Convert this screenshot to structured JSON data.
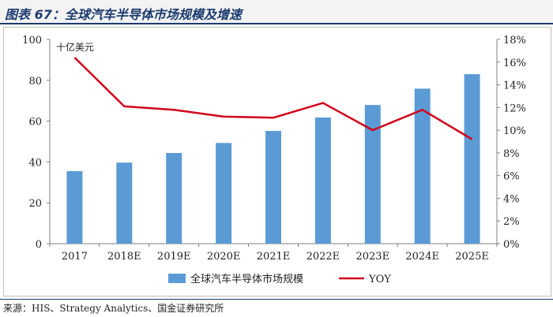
{
  "header": {
    "title": "图表 67：全球汽车半导体市场规模及增速"
  },
  "source": {
    "text": "来源：HIS、Strategy Analytics、国金证券研究所"
  },
  "chart_data": {
    "type": "bar",
    "title": "全球汽车半导体市场规模及增速",
    "unit_label": "十亿美元",
    "categories": [
      "2017",
      "2018E",
      "2019E",
      "2020E",
      "2021E",
      "2022E",
      "2023E",
      "2024E",
      "2025E"
    ],
    "series": [
      {
        "name": "全球汽车半导体市场规模",
        "type": "bar",
        "axis": "left",
        "color": "#5b9bd5",
        "values": [
          35.5,
          39.7,
          44.4,
          49.3,
          55.2,
          61.8,
          67.9,
          75.9,
          83.0
        ]
      },
      {
        "name": "YOY",
        "type": "line",
        "axis": "right",
        "color": "#d0021b",
        "values": [
          16.4,
          12.1,
          11.8,
          11.2,
          11.1,
          12.4,
          10.0,
          11.8,
          9.2
        ]
      }
    ],
    "y_left": {
      "min": 0,
      "max": 100,
      "step": 20,
      "ticks": [
        "0",
        "20",
        "40",
        "60",
        "80",
        "100"
      ]
    },
    "y_right": {
      "min": 0,
      "max": 18,
      "step": 2,
      "ticks": [
        "0%",
        "2%",
        "4%",
        "6%",
        "8%",
        "10%",
        "12%",
        "14%",
        "16%",
        "18%"
      ]
    },
    "legend": {
      "position": "bottom",
      "labels": [
        "全球汽车半导体市场规模",
        "YOY"
      ]
    }
  }
}
